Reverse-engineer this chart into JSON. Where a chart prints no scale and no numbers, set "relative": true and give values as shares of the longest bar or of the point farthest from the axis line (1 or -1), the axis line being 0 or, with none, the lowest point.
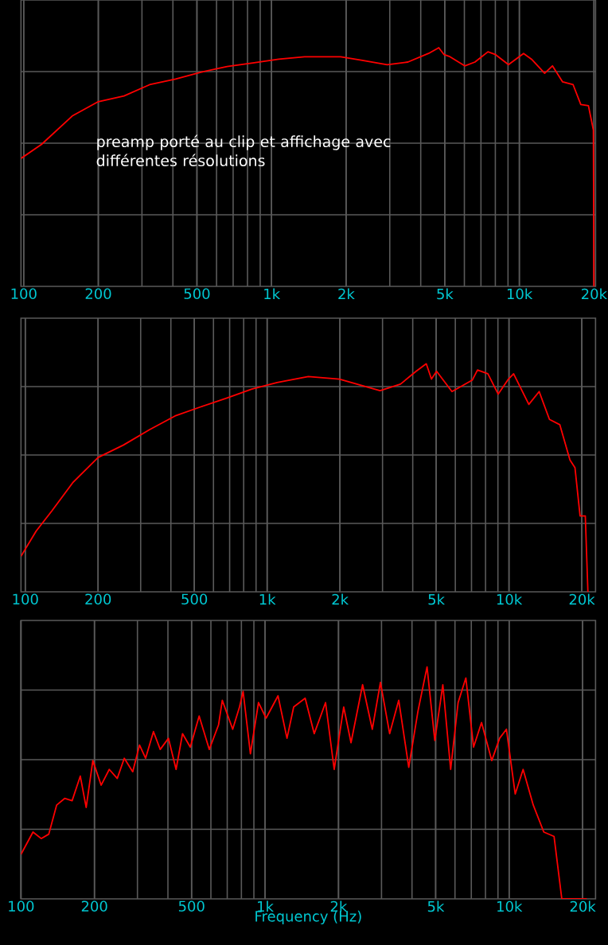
{
  "chart_data": [
    {
      "type": "line",
      "relative": true,
      "grid": true,
      "log": "x",
      "xlim": [
        97.5,
        20300
      ],
      "xticks": [
        {
          "value": 100,
          "label": "100"
        },
        {
          "value": 200,
          "label": "200"
        },
        {
          "value": 500,
          "label": "500"
        },
        {
          "value": 1000,
          "label": "1k"
        },
        {
          "value": 2000,
          "label": "2k"
        },
        {
          "value": 5000,
          "label": "5k"
        },
        {
          "value": 10000,
          "label": "10k"
        },
        {
          "value": 20000,
          "label": "20k"
        }
      ],
      "annotations": [
        "preamp porté au clip et affichage avec différentes résolutions"
      ],
      "x": [
        97.5,
        118,
        157,
        200,
        254,
        322,
        410,
        521,
        662,
        841,
        1070,
        1360,
        1900,
        2300,
        2930,
        3550,
        4300,
        4730,
        4970,
        5210,
        6020,
        6620,
        7470,
        8020,
        9040,
        10400,
        11200,
        12650,
        13600,
        14950,
        16480,
        17700,
        19000,
        19900,
        20000
      ],
      "series": [
        {
          "color": "#ff0000",
          "values": [
            0.536,
            0.595,
            0.714,
            0.774,
            0.798,
            0.845,
            0.869,
            0.898,
            0.921,
            0.936,
            0.952,
            0.962,
            0.962,
            0.948,
            0.929,
            0.94,
            0.976,
            1,
            0.971,
            0.964,
            0.924,
            0.94,
            0.983,
            0.971,
            0.929,
            0.976,
            0.952,
            0.893,
            0.924,
            0.857,
            0.845,
            0.762,
            0.757,
            0.655,
            0
          ]
        }
      ]
    },
    {
      "type": "line",
      "relative": true,
      "grid": true,
      "log": "x",
      "xlim": [
        96,
        22800
      ],
      "xticks": [
        {
          "value": 100,
          "label": "100"
        },
        {
          "value": 200,
          "label": "200"
        },
        {
          "value": 500,
          "label": "500"
        },
        {
          "value": 1000,
          "label": "1k"
        },
        {
          "value": 2000,
          "label": "2k"
        },
        {
          "value": 5000,
          "label": "5k"
        },
        {
          "value": 10000,
          "label": "10k"
        },
        {
          "value": 20000,
          "label": "20k"
        }
      ],
      "x": [
        96,
        111,
        129,
        157,
        200,
        255,
        326,
        416,
        531,
        678,
        865,
        1100,
        1480,
        1990,
        2930,
        3560,
        4130,
        4550,
        4780,
        5020,
        5810,
        7060,
        7410,
        8180,
        9020,
        9950,
        10450,
        12080,
        13330,
        14700,
        16220,
        17870,
        18750,
        19680,
        20680,
        21200
      ],
      "series": [
        {
          "color": "#ff0000",
          "values": [
            0.156,
            0.267,
            0.356,
            0.478,
            0.589,
            0.644,
            0.711,
            0.771,
            0.811,
            0.849,
            0.889,
            0.918,
            0.944,
            0.933,
            0.882,
            0.911,
            0.967,
            1,
            0.933,
            0.967,
            0.878,
            0.929,
            0.973,
            0.956,
            0.867,
            0.933,
            0.956,
            0.822,
            0.878,
            0.756,
            0.733,
            0.578,
            0.544,
            0.333,
            0.333,
            0
          ]
        }
      ]
    },
    {
      "type": "line",
      "relative": true,
      "grid": true,
      "log": "x",
      "xlim": [
        100,
        22600
      ],
      "xlabel": "Frequency (Hz)",
      "xticks": [
        {
          "value": 100,
          "label": "100"
        },
        {
          "value": 200,
          "label": "200"
        },
        {
          "value": 500,
          "label": "500"
        },
        {
          "value": 1000,
          "label": "1k"
        },
        {
          "value": 2000,
          "label": "2k"
        },
        {
          "value": 5000,
          "label": "5k"
        },
        {
          "value": 10000,
          "label": "10k"
        },
        {
          "value": 20000,
          "label": "20k"
        }
      ],
      "x": [
        100,
        112,
        121,
        130,
        140,
        151,
        162,
        175,
        185,
        197,
        213,
        230,
        248,
        265,
        287,
        306,
        324,
        349,
        372,
        402,
        432,
        459,
        494,
        537,
        591,
        645,
        668,
        737,
        786,
        813,
        871,
        940,
        1010,
        1130,
        1230,
        1310,
        1460,
        1590,
        1770,
        1920,
        2100,
        2250,
        2510,
        2750,
        2970,
        3240,
        3530,
        3880,
        4230,
        4610,
        4960,
        5350,
        5760,
        6180,
        6650,
        7150,
        7710,
        8490,
        9140,
        9750,
        10590,
        11410,
        12560,
        13870,
        15280,
        16440,
        17700,
        18570,
        19720,
        20280,
        20800
      ],
      "series": [
        {
          "color": "#ff0000",
          "values": [
            0.192,
            0.288,
            0.26,
            0.279,
            0.404,
            0.433,
            0.423,
            0.529,
            0.394,
            0.596,
            0.49,
            0.558,
            0.519,
            0.606,
            0.548,
            0.663,
            0.606,
            0.721,
            0.644,
            0.692,
            0.558,
            0.712,
            0.654,
            0.788,
            0.644,
            0.75,
            0.856,
            0.731,
            0.827,
            0.894,
            0.625,
            0.846,
            0.779,
            0.875,
            0.692,
            0.827,
            0.865,
            0.712,
            0.846,
            0.558,
            0.827,
            0.673,
            0.923,
            0.731,
            0.933,
            0.712,
            0.856,
            0.567,
            0.808,
            1,
            0.683,
            0.923,
            0.558,
            0.846,
            0.952,
            0.654,
            0.76,
            0.596,
            0.692,
            0.731,
            0.452,
            0.558,
            0.404,
            0.288,
            0.269,
            0,
            0,
            0,
            0,
            0,
            0
          ]
        }
      ]
    }
  ]
}
